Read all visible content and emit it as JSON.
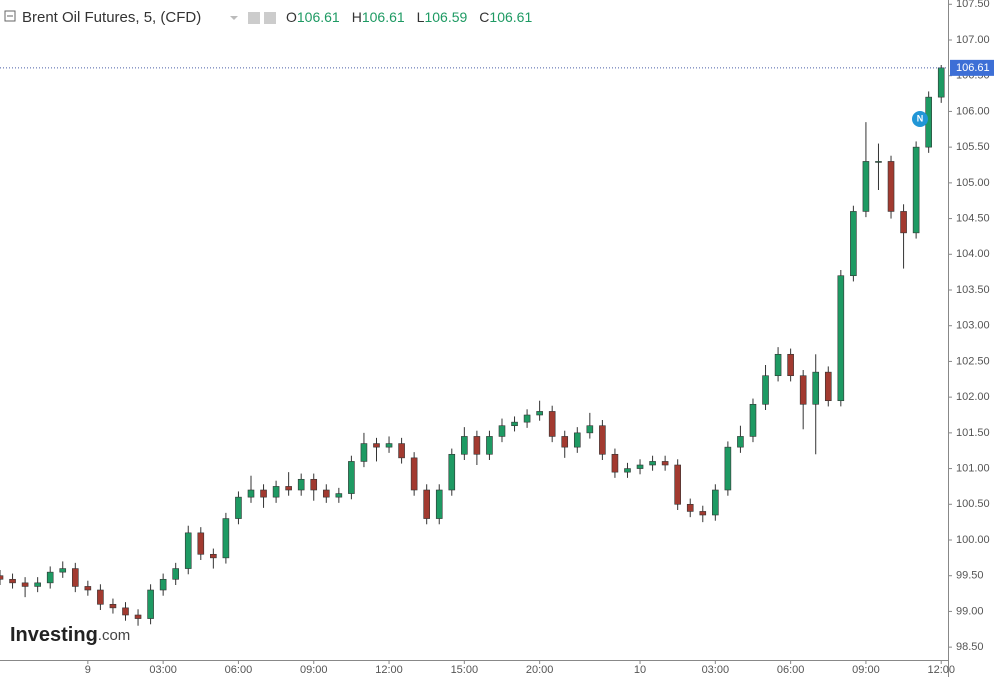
{
  "chart_data": {
    "type": "candlestick",
    "title": "Brent Oil Futures, 5, (CFD)",
    "ohlc_legend": [
      {
        "label": "O",
        "value": 106.61
      },
      {
        "label": "H",
        "value": 106.61
      },
      {
        "label": "L",
        "value": 106.59
      },
      {
        "label": "C",
        "value": 106.61
      }
    ],
    "last_price": 106.61,
    "logo": {
      "name": "Investing",
      "suffix": ".com"
    },
    "badge": "N",
    "up_color": "#1e9a63",
    "down_color": "#a23a30",
    "x": [
      -3.5,
      -3,
      -2.5,
      -2,
      -1.5,
      -1,
      -0.5,
      0,
      0.5,
      1,
      1.5,
      2,
      2.5,
      3,
      3.5,
      4,
      4.5,
      5,
      5.5,
      6,
      6.5,
      7,
      7.5,
      8,
      8.5,
      9,
      9.5,
      10,
      10.5,
      11,
      11.5,
      12,
      12.5,
      13,
      13.5,
      14,
      14.5,
      15,
      15.5,
      16,
      16.5,
      17,
      17.5,
      18,
      18.5,
      19,
      19.5,
      20,
      20.5,
      21,
      21.5,
      22,
      22.5,
      23,
      23.5,
      24,
      24.5,
      25,
      25.5,
      26,
      26.5,
      27,
      27.5,
      28,
      28.5,
      29,
      29.5,
      30,
      30.5,
      31,
      31.5,
      32,
      32.5,
      33,
      33.5,
      34
    ],
    "open": [
      99.5,
      99.45,
      99.4,
      99.35,
      99.4,
      99.55,
      99.6,
      99.35,
      99.3,
      99.1,
      99.05,
      98.95,
      98.9,
      99.3,
      99.45,
      99.6,
      100.1,
      99.8,
      99.75,
      100.3,
      100.6,
      100.7,
      100.6,
      100.75,
      100.7,
      100.85,
      100.7,
      100.6,
      100.65,
      101.1,
      101.35,
      101.3,
      101.35,
      101.15,
      100.7,
      100.3,
      100.7,
      101.2,
      101.45,
      101.2,
      101.45,
      101.6,
      101.65,
      101.75,
      101.8,
      101.45,
      101.3,
      101.5,
      101.6,
      101.2,
      100.95,
      101.0,
      101.05,
      101.1,
      101.05,
      100.5,
      100.4,
      100.35,
      100.7,
      101.3,
      101.45,
      101.9,
      102.3,
      102.6,
      102.3,
      101.9,
      102.35,
      101.95,
      103.7,
      104.6,
      105.3,
      105.3,
      104.6,
      104.3,
      105.5,
      106.2
    ],
    "high": [
      99.58,
      99.53,
      99.48,
      99.48,
      99.63,
      99.7,
      99.68,
      99.43,
      99.38,
      99.18,
      99.13,
      99.03,
      99.38,
      99.53,
      99.68,
      100.2,
      100.18,
      99.88,
      100.38,
      100.68,
      100.9,
      100.78,
      100.83,
      100.95,
      100.93,
      100.93,
      100.78,
      100.73,
      101.18,
      101.5,
      101.43,
      101.45,
      101.43,
      101.23,
      100.78,
      100.78,
      101.28,
      101.58,
      101.53,
      101.53,
      101.7,
      101.73,
      101.83,
      101.95,
      101.88,
      101.53,
      101.58,
      101.78,
      101.68,
      101.28,
      101.08,
      101.13,
      101.18,
      101.18,
      101.13,
      100.58,
      100.48,
      100.78,
      101.38,
      101.6,
      101.98,
      102.45,
      102.7,
      102.68,
      102.38,
      102.6,
      102.43,
      103.78,
      104.68,
      105.85,
      105.55,
      105.38,
      104.7,
      105.58,
      106.28,
      106.65
    ],
    "low": [
      99.37,
      99.32,
      99.2,
      99.27,
      99.32,
      99.47,
      99.27,
      99.22,
      99.02,
      98.97,
      98.87,
      98.8,
      98.82,
      99.22,
      99.37,
      99.52,
      99.72,
      99.6,
      99.67,
      100.22,
      100.52,
      100.45,
      100.52,
      100.62,
      100.62,
      100.55,
      100.52,
      100.52,
      100.57,
      101.02,
      101.1,
      101.22,
      101.07,
      100.62,
      100.22,
      100.22,
      100.62,
      101.12,
      101.05,
      101.12,
      101.37,
      101.52,
      101.57,
      101.67,
      101.37,
      101.15,
      101.22,
      101.42,
      101.12,
      100.87,
      100.87,
      100.92,
      100.97,
      100.97,
      100.42,
      100.32,
      100.25,
      100.27,
      100.62,
      101.22,
      101.37,
      101.82,
      102.22,
      102.22,
      101.55,
      101.2,
      101.87,
      101.87,
      103.62,
      104.52,
      104.9,
      104.5,
      103.8,
      104.22,
      105.42,
      106.12
    ],
    "close": [
      99.45,
      99.4,
      99.35,
      99.4,
      99.55,
      99.6,
      99.35,
      99.3,
      99.1,
      99.05,
      98.95,
      98.9,
      99.3,
      99.45,
      99.6,
      100.1,
      99.8,
      99.75,
      100.3,
      100.6,
      100.7,
      100.6,
      100.75,
      100.7,
      100.85,
      100.7,
      100.6,
      100.65,
      101.1,
      101.35,
      101.3,
      101.35,
      101.15,
      100.7,
      100.3,
      100.7,
      101.2,
      101.45,
      101.2,
      101.45,
      101.6,
      101.65,
      101.75,
      101.8,
      101.45,
      101.3,
      101.5,
      101.6,
      101.2,
      100.95,
      101.0,
      101.05,
      101.1,
      101.05,
      100.5,
      100.4,
      100.35,
      100.7,
      101.3,
      101.45,
      101.9,
      102.3,
      102.6,
      102.3,
      101.9,
      102.35,
      101.95,
      103.7,
      104.6,
      105.3,
      105.3,
      104.6,
      104.3,
      105.5,
      106.2,
      106.61
    ],
    "xlim": [
      -3.5,
      34.27
    ],
    "xticks": [
      {
        "value": 0,
        "label": "9"
      },
      {
        "value": 3,
        "label": "03:00"
      },
      {
        "value": 6,
        "label": "06:00"
      },
      {
        "value": 9,
        "label": "09:00"
      },
      {
        "value": 12,
        "label": "12:00"
      },
      {
        "value": 15,
        "label": "15:00"
      },
      {
        "value": 18,
        "label": "20:00"
      },
      {
        "value": 22,
        "label": "10"
      },
      {
        "value": 25,
        "label": "03:00"
      },
      {
        "value": 28,
        "label": "06:00"
      },
      {
        "value": 31,
        "label": "09:00"
      },
      {
        "value": 34,
        "label": "12:00"
      }
    ],
    "ylim": [
      98.32,
      107.56
    ],
    "yticks": [
      {
        "value": 98.5,
        "label": "98.50"
      },
      {
        "value": 99,
        "label": "99.00"
      },
      {
        "value": 99.5,
        "label": "99.50"
      },
      {
        "value": 100,
        "label": "100.00"
      },
      {
        "value": 100.5,
        "label": "100.50"
      },
      {
        "value": 101,
        "label": "101.00"
      },
      {
        "value": 101.5,
        "label": "101.50"
      },
      {
        "value": 102,
        "label": "102.00"
      },
      {
        "value": 102.5,
        "label": "102.50"
      },
      {
        "value": 103,
        "label": "103.00"
      },
      {
        "value": 103.5,
        "label": "103.50"
      },
      {
        "value": 104,
        "label": "104.00"
      },
      {
        "value": 104.5,
        "label": "104.50"
      },
      {
        "value": 105,
        "label": "105.00"
      },
      {
        "value": 105.5,
        "label": "105.50"
      },
      {
        "value": 106,
        "label": "106.00"
      },
      {
        "value": 106.5,
        "label": "106.50"
      },
      {
        "value": 107,
        "label": "107.00"
      },
      {
        "value": 107.5,
        "label": "107.50"
      }
    ]
  }
}
